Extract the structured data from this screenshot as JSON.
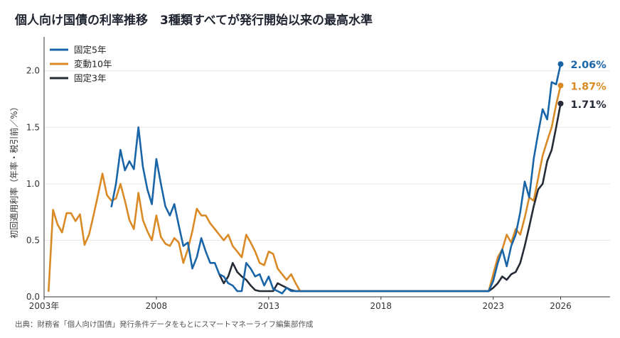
{
  "title": "個人向け国債の利率推移　3種類すべてが発行開始以来の最高水準",
  "source": "出典：財務省「個人向け国債」発行条件データをもとにスマートマネーライフ編集部作成",
  "colors": {
    "fixed5": "#1a65a8",
    "float10": "#d98a24",
    "fixed3": "#262b38",
    "grid": "#e6e6e6",
    "axis": "#333333"
  },
  "chart_data": {
    "type": "line",
    "title": "個人向け国債の利率推移　3種類すべてが発行開始以来の最高水準",
    "xlabel": "",
    "ylabel": "初回適用利率（年率・税引前／%）",
    "xlim": [
      2003.0,
      2028.2
    ],
    "ylim": [
      0.0,
      2.3
    ],
    "x_ticks": [
      {
        "value": 2003.0,
        "label": "2003年"
      },
      {
        "value": 2008.0,
        "label": "2008"
      },
      {
        "value": 2013.0,
        "label": "2013"
      },
      {
        "value": 2018.0,
        "label": "2018"
      },
      {
        "value": 2023.0,
        "label": "2023"
      },
      {
        "value": 2026.0,
        "label": "2026"
      }
    ],
    "y_ticks": [
      {
        "value": 0.0,
        "label": "0.0"
      },
      {
        "value": 0.5,
        "label": "0.5"
      },
      {
        "value": 1.0,
        "label": "1.0"
      },
      {
        "value": 1.5,
        "label": "1.5"
      },
      {
        "value": 2.0,
        "label": "2.0"
      }
    ],
    "grid": "horizontal",
    "legend_position": "top-left",
    "series": [
      {
        "name": "固定5年",
        "color": "#1a65a8",
        "end_label": "2.06%",
        "x": [
          2006.0,
          2006.2,
          2006.4,
          2006.6,
          2006.8,
          2007.0,
          2007.2,
          2007.4,
          2007.6,
          2007.8,
          2008.0,
          2008.2,
          2008.4,
          2008.6,
          2008.8,
          2009.0,
          2009.2,
          2009.4,
          2009.6,
          2009.8,
          2010.0,
          2010.2,
          2010.4,
          2010.6,
          2010.8,
          2011.0,
          2011.2,
          2011.4,
          2011.6,
          2011.8,
          2012.0,
          2012.2,
          2012.4,
          2012.6,
          2012.8,
          2013.0,
          2013.2,
          2013.4,
          2013.6,
          2013.8,
          2014.0,
          2014.2,
          2014.4,
          2014.6,
          2014.8,
          2015.0,
          2015.2,
          2015.4,
          2015.6,
          2015.8,
          2016.0,
          2016.2,
          2016.4,
          2017.0,
          2018.0,
          2019.0,
          2020.0,
          2021.0,
          2022.0,
          2022.8,
          2023.0,
          2023.2,
          2023.4,
          2023.6,
          2023.8,
          2024.0,
          2024.2,
          2024.4,
          2024.6,
          2024.8,
          2025.0,
          2025.2,
          2025.4,
          2025.6,
          2025.8,
          2026.0
        ],
        "y": [
          0.8,
          1.0,
          1.3,
          1.12,
          1.2,
          1.13,
          1.5,
          1.15,
          0.95,
          0.82,
          1.22,
          1.0,
          0.8,
          0.72,
          0.82,
          0.63,
          0.45,
          0.48,
          0.25,
          0.35,
          0.52,
          0.4,
          0.3,
          0.3,
          0.2,
          0.18,
          0.12,
          0.1,
          0.05,
          0.05,
          0.3,
          0.25,
          0.18,
          0.2,
          0.1,
          0.18,
          0.07,
          0.05,
          0.03,
          0.08,
          0.05,
          0.05,
          0.05,
          0.05,
          0.05,
          0.05,
          0.05,
          0.05,
          0.05,
          0.05,
          0.05,
          0.05,
          0.05,
          0.05,
          0.05,
          0.05,
          0.05,
          0.05,
          0.05,
          0.05,
          0.14,
          0.3,
          0.42,
          0.27,
          0.45,
          0.55,
          0.75,
          1.02,
          0.88,
          1.22,
          1.45,
          1.66,
          1.57,
          1.9,
          1.88,
          2.06
        ]
      },
      {
        "name": "変動10年",
        "color": "#d98a24",
        "end_label": "1.87%",
        "x": [
          2003.2,
          2003.4,
          2003.6,
          2003.8,
          2004.0,
          2004.2,
          2004.4,
          2004.6,
          2004.8,
          2005.0,
          2005.2,
          2005.4,
          2005.6,
          2005.8,
          2006.0,
          2006.2,
          2006.4,
          2006.6,
          2006.8,
          2007.0,
          2007.2,
          2007.4,
          2007.6,
          2007.8,
          2008.0,
          2008.2,
          2008.4,
          2008.6,
          2008.8,
          2009.0,
          2009.2,
          2009.4,
          2009.6,
          2009.8,
          2010.0,
          2010.2,
          2010.4,
          2010.6,
          2010.8,
          2011.0,
          2011.2,
          2011.4,
          2011.6,
          2011.8,
          2012.0,
          2012.2,
          2012.4,
          2012.6,
          2012.8,
          2013.0,
          2013.2,
          2013.4,
          2013.6,
          2013.8,
          2014.0,
          2014.2,
          2014.4,
          2014.6,
          2014.8,
          2015.0,
          2015.2,
          2015.4,
          2015.6,
          2015.8,
          2016.0,
          2016.2,
          2016.4,
          2017.0,
          2018.0,
          2019.0,
          2020.0,
          2021.0,
          2022.0,
          2022.8,
          2023.0,
          2023.2,
          2023.4,
          2023.6,
          2023.8,
          2024.0,
          2024.2,
          2024.4,
          2024.6,
          2024.8,
          2025.0,
          2025.2,
          2025.4,
          2025.6,
          2025.8,
          2026.0
        ],
        "y": [
          0.05,
          0.77,
          0.64,
          0.57,
          0.74,
          0.74,
          0.67,
          0.73,
          0.46,
          0.55,
          0.72,
          0.9,
          1.09,
          0.9,
          0.85,
          0.87,
          1.0,
          0.85,
          0.68,
          0.6,
          0.92,
          0.68,
          0.58,
          0.5,
          0.72,
          0.53,
          0.47,
          0.45,
          0.52,
          0.48,
          0.3,
          0.42,
          0.58,
          0.78,
          0.72,
          0.72,
          0.65,
          0.6,
          0.55,
          0.5,
          0.55,
          0.45,
          0.4,
          0.35,
          0.55,
          0.48,
          0.4,
          0.3,
          0.28,
          0.4,
          0.38,
          0.25,
          0.2,
          0.15,
          0.2,
          0.12,
          0.05,
          0.05,
          0.05,
          0.05,
          0.05,
          0.05,
          0.05,
          0.05,
          0.05,
          0.05,
          0.05,
          0.05,
          0.05,
          0.05,
          0.05,
          0.05,
          0.05,
          0.05,
          0.2,
          0.35,
          0.42,
          0.55,
          0.48,
          0.6,
          0.55,
          0.7,
          0.88,
          0.85,
          1.05,
          1.25,
          1.38,
          1.5,
          1.7,
          1.87
        ]
      },
      {
        "name": "固定3年",
        "color": "#262b38",
        "end_label": "1.71%",
        "x": [
          2010.8,
          2011.0,
          2011.2,
          2011.4,
          2011.6,
          2011.8,
          2012.0,
          2012.2,
          2012.4,
          2012.6,
          2012.8,
          2013.0,
          2013.2,
          2013.4,
          2013.6,
          2013.8,
          2014.0,
          2014.2,
          2014.4,
          2014.6,
          2014.8,
          2015.0,
          2015.2,
          2015.4,
          2015.6,
          2015.8,
          2016.0,
          2016.2,
          2016.4,
          2017.0,
          2018.0,
          2019.0,
          2020.0,
          2021.0,
          2022.0,
          2022.8,
          2023.0,
          2023.2,
          2023.4,
          2023.6,
          2023.8,
          2024.0,
          2024.2,
          2024.4,
          2024.6,
          2024.8,
          2025.0,
          2025.2,
          2025.4,
          2025.6,
          2025.8,
          2026.0
        ],
        "y": [
          0.2,
          0.12,
          0.18,
          0.3,
          0.22,
          0.18,
          0.15,
          0.1,
          0.06,
          0.05,
          0.05,
          0.05,
          0.05,
          0.12,
          0.1,
          0.08,
          0.06,
          0.05,
          0.05,
          0.05,
          0.05,
          0.05,
          0.05,
          0.05,
          0.05,
          0.05,
          0.05,
          0.05,
          0.05,
          0.05,
          0.05,
          0.05,
          0.05,
          0.05,
          0.05,
          0.05,
          0.08,
          0.12,
          0.18,
          0.15,
          0.2,
          0.22,
          0.3,
          0.45,
          0.62,
          0.8,
          0.95,
          1.0,
          1.2,
          1.3,
          1.5,
          1.71
        ]
      }
    ]
  }
}
